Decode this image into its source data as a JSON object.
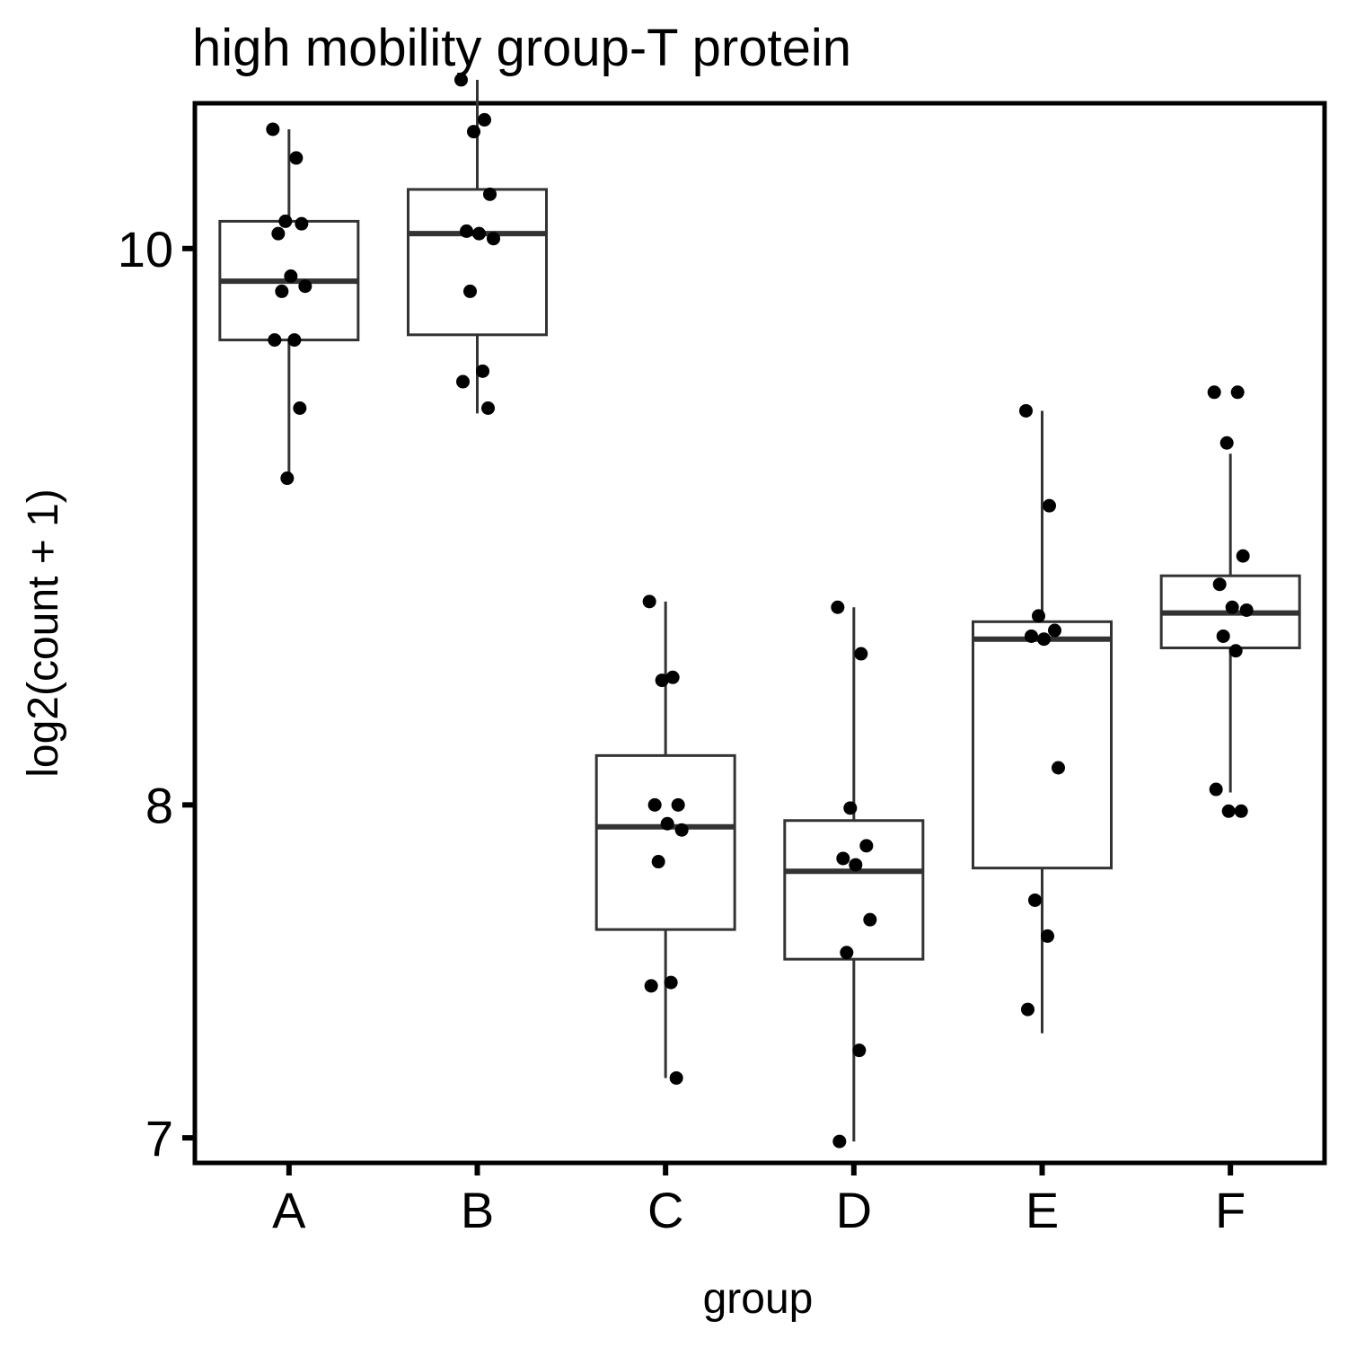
{
  "chart_data": {
    "type": "boxplot",
    "title": "high mobility group-T protein",
    "xlabel": "group",
    "ylabel": "log2(count + 1)",
    "y_scale": "log",
    "ylim": [
      6.93,
      10.6
    ],
    "yticks": [
      7,
      8,
      10
    ],
    "ytick_labels": [
      "7",
      "8",
      "10"
    ],
    "categories": [
      "A",
      "B",
      "C",
      "D",
      "E",
      "F"
    ],
    "boxes": [
      {
        "group": "A",
        "whisker_low": 9.12,
        "q1": 9.64,
        "median": 9.87,
        "q3": 10.11,
        "whisker_high": 10.49
      },
      {
        "group": "B",
        "whisker_low": 9.36,
        "q1": 9.66,
        "median": 10.06,
        "q3": 10.24,
        "whisker_high": 10.7
      },
      {
        "group": "C",
        "whisker_low": 7.17,
        "q1": 7.61,
        "median": 7.93,
        "q3": 8.16,
        "whisker_high": 8.68
      },
      {
        "group": "D",
        "whisker_low": 6.99,
        "q1": 7.52,
        "median": 7.79,
        "q3": 7.95,
        "whisker_high": 8.66
      },
      {
        "group": "E",
        "whisker_low": 7.3,
        "q1": 7.8,
        "median": 8.55,
        "q3": 8.61,
        "whisker_high": 9.37
      },
      {
        "group": "F",
        "whisker_low": 8.04,
        "q1": 8.52,
        "median": 8.64,
        "q3": 8.77,
        "whisker_high": 9.21
      }
    ],
    "points": [
      {
        "group": "A",
        "values": [
          10.49,
          10.37,
          10.11,
          10.1,
          10.06,
          9.89,
          9.85,
          9.83,
          9.64,
          9.64,
          9.38,
          9.12
        ]
      },
      {
        "group": "B",
        "values": [
          10.7,
          10.53,
          10.48,
          10.22,
          10.07,
          10.06,
          10.04,
          9.83,
          9.52,
          9.48,
          9.38
        ]
      },
      {
        "group": "C",
        "values": [
          8.68,
          8.42,
          8.41,
          8.0,
          8.0,
          7.94,
          7.92,
          7.82,
          7.45,
          7.44,
          7.17
        ]
      },
      {
        "group": "D",
        "values": [
          8.66,
          8.5,
          7.99,
          7.87,
          7.83,
          7.81,
          7.64,
          7.54,
          7.25,
          6.99
        ]
      },
      {
        "group": "E",
        "values": [
          9.37,
          9.02,
          8.63,
          8.58,
          8.56,
          8.55,
          8.12,
          7.7,
          7.59,
          7.37
        ]
      },
      {
        "group": "F",
        "values": [
          9.44,
          9.44,
          9.25,
          8.84,
          8.74,
          8.66,
          8.65,
          8.56,
          8.51,
          8.05,
          7.98,
          7.98
        ]
      }
    ],
    "grid": false,
    "legend": "none"
  }
}
